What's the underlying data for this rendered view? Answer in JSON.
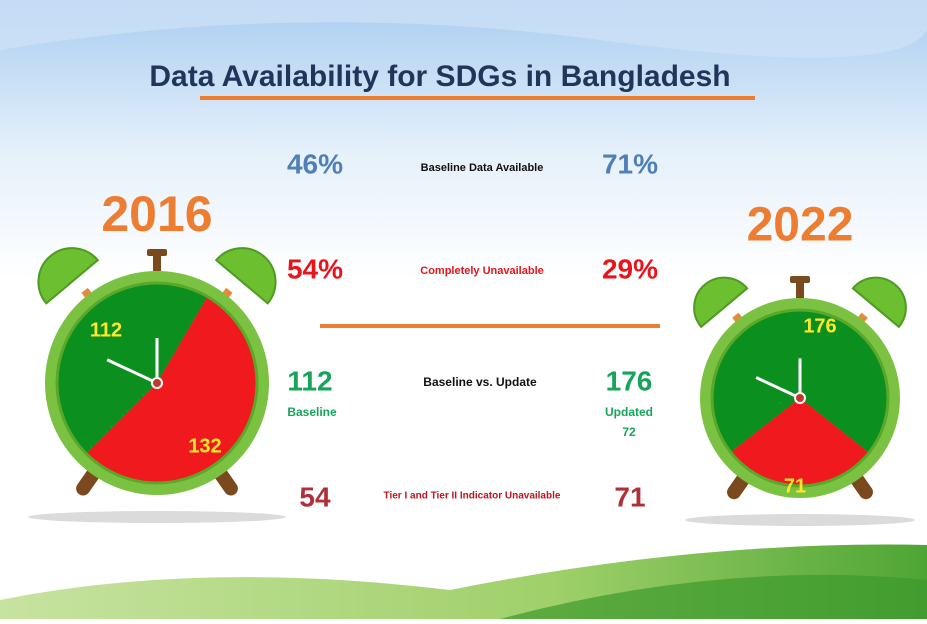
{
  "title": "Data Availability for SDGs in Bangladesh",
  "clocks": [
    {
      "year": "2016",
      "values": [
        112,
        132
      ],
      "colors": [
        "#0b8f1f",
        "#f01a1e"
      ]
    },
    {
      "year": "2022",
      "values": [
        176,
        71
      ],
      "colors": [
        "#0b8f1f",
        "#f01a1e"
      ]
    }
  ],
  "rows": [
    {
      "left": "46%",
      "label": "Baseline Data Available",
      "right": "71%"
    },
    {
      "left": "54%",
      "label": "Completely Unavailable",
      "right": "29%"
    },
    {
      "left": "112",
      "left_note": "Baseline",
      "label": "Baseline vs. Update",
      "right": "176",
      "right_note": "Updated",
      "right_extra": "72"
    },
    {
      "left": "54",
      "label": "Tier I and Tier II Indicator Unavailable",
      "right": "71"
    }
  ]
}
